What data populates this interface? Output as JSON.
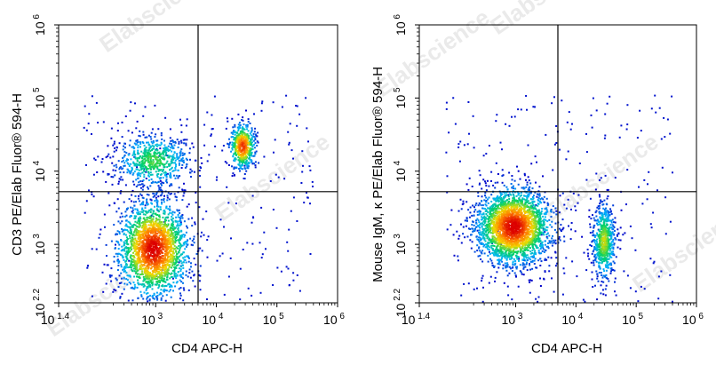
{
  "watermark": "Elabscience",
  "chart_data": [
    {
      "type": "scatter",
      "subtype": "flow-cytometry-density-dot-plot",
      "title": "",
      "xlabel": "CD4 APC-H",
      "ylabel": "CD3 PE/Elab Fluor® 594-H",
      "xscale": "log",
      "yscale": "log",
      "xlim_log10": [
        1.4,
        6
      ],
      "ylim_log10": [
        2.2,
        6
      ],
      "x_ticks": [
        {
          "base": "10",
          "exp": "1.4",
          "value_log10": 1.4
        },
        {
          "base": "10",
          "exp": "3",
          "value_log10": 3
        },
        {
          "base": "10",
          "exp": "4",
          "value_log10": 4
        },
        {
          "base": "10",
          "exp": "5",
          "value_log10": 5
        },
        {
          "base": "10",
          "exp": "6",
          "value_log10": 6
        }
      ],
      "y_ticks": [
        {
          "base": "10",
          "exp": "2.2",
          "value_log10": 2.2
        },
        {
          "base": "10",
          "exp": "3",
          "value_log10": 3
        },
        {
          "base": "10",
          "exp": "4",
          "value_log10": 4
        },
        {
          "base": "10",
          "exp": "5",
          "value_log10": 5
        },
        {
          "base": "10",
          "exp": "6",
          "value_log10": 6
        }
      ],
      "gate_log10": {
        "x": 3.7,
        "y": 3.72
      },
      "grid": false,
      "legend": "none",
      "colormap": [
        "#0000c8",
        "#00b4ff",
        "#00d264",
        "#f0dc00",
        "#ff7800",
        "#dc0000"
      ],
      "populations": [
        {
          "cx_log10": 2.95,
          "cy_log10": 2.95,
          "sx": 0.28,
          "sy": 0.32,
          "n": 2200,
          "peak": 1.0
        },
        {
          "cx_log10": 2.95,
          "cy_log10": 4.15,
          "sx": 0.3,
          "sy": 0.18,
          "n": 650,
          "peak": 0.45
        },
        {
          "cx_log10": 4.42,
          "cy_log10": 4.35,
          "sx": 0.1,
          "sy": 0.15,
          "n": 520,
          "peak": 0.9
        }
      ]
    },
    {
      "type": "scatter",
      "subtype": "flow-cytometry-density-dot-plot",
      "title": "",
      "xlabel": "CD4 APC-H",
      "ylabel": "Mouse IgM, κ PE/Elab Fluor® 594-H",
      "xscale": "log",
      "yscale": "log",
      "xlim_log10": [
        1.4,
        6
      ],
      "ylim_log10": [
        2.2,
        6
      ],
      "x_ticks": [
        {
          "base": "10",
          "exp": "1.4",
          "value_log10": 1.4
        },
        {
          "base": "10",
          "exp": "3",
          "value_log10": 3
        },
        {
          "base": "10",
          "exp": "4",
          "value_log10": 4
        },
        {
          "base": "10",
          "exp": "5",
          "value_log10": 5
        },
        {
          "base": "10",
          "exp": "6",
          "value_log10": 6
        }
      ],
      "y_ticks": [
        {
          "base": "10",
          "exp": "2.2",
          "value_log10": 2.2
        },
        {
          "base": "10",
          "exp": "3",
          "value_log10": 3
        },
        {
          "base": "10",
          "exp": "4",
          "value_log10": 4
        },
        {
          "base": "10",
          "exp": "5",
          "value_log10": 5
        },
        {
          "base": "10",
          "exp": "6",
          "value_log10": 6
        }
      ],
      "gate_log10": {
        "x": 3.7,
        "y": 3.72
      },
      "grid": false,
      "legend": "none",
      "colormap": [
        "#0000c8",
        "#00b4ff",
        "#00d264",
        "#f0dc00",
        "#ff7800",
        "#dc0000"
      ],
      "populations": [
        {
          "cx_log10": 2.95,
          "cy_log10": 3.25,
          "sx": 0.3,
          "sy": 0.25,
          "n": 2600,
          "peak": 1.0
        },
        {
          "cx_log10": 4.45,
          "cy_log10": 3.05,
          "sx": 0.09,
          "sy": 0.25,
          "n": 650,
          "peak": 0.55
        }
      ]
    }
  ]
}
